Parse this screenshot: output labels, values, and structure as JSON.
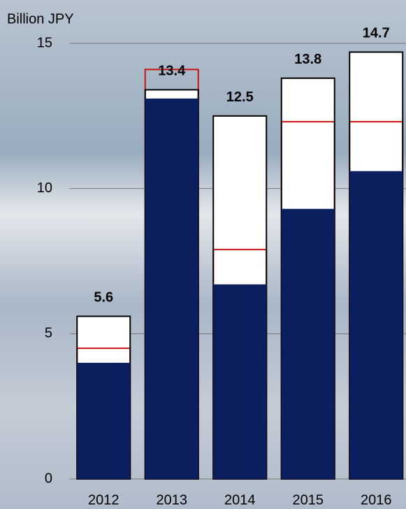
{
  "chart_data": {
    "type": "bar",
    "y_axis_label": "Billion JPY",
    "categories": [
      "2012",
      "2013",
      "2014",
      "2015",
      "2016"
    ],
    "totals": {
      "color": "#ffffff",
      "stroke": "#000000",
      "values": [
        5.6,
        13.4,
        12.5,
        13.8,
        14.7
      ]
    },
    "series": [
      {
        "color": "#0b1f5e",
        "values": [
          4.0,
          13.1,
          6.7,
          9.3,
          10.6
        ]
      }
    ],
    "markers": {
      "color": "#cc1111",
      "values": [
        4.5,
        14.1,
        7.9,
        12.3,
        12.3
      ]
    },
    "ylim": [
      0,
      15
    ],
    "yticks": [
      0,
      5,
      10,
      15
    ],
    "grid": true
  }
}
